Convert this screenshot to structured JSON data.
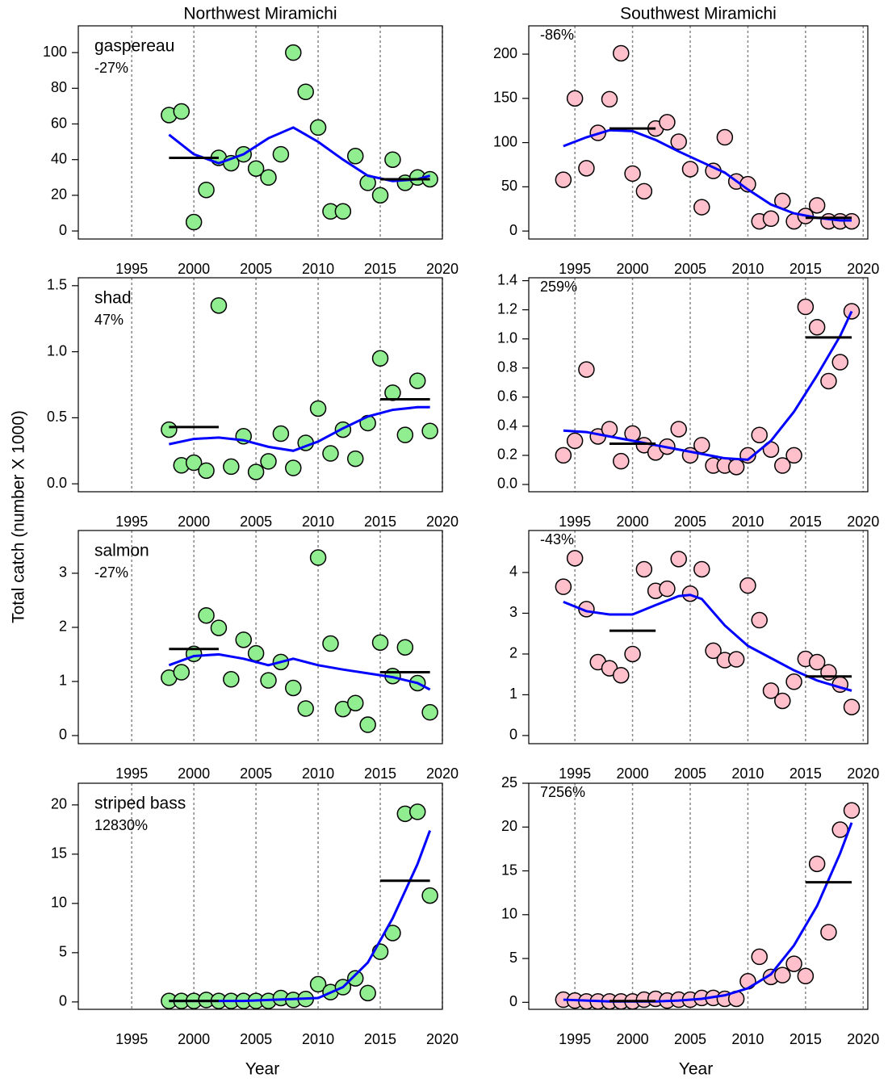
{
  "y_label": "Total catch (number X 1000)",
  "x_label": "Year",
  "chart_data": [
    {
      "type": "scatter",
      "title": "Northwest Miramichi",
      "label": "gaspereau",
      "annotation": "-27%",
      "color": "#90ee90",
      "line_color": "#0000ff",
      "grid": "x",
      "x": [
        1998,
        1999,
        2000,
        2001,
        2002,
        2003,
        2004,
        2005,
        2006,
        2007,
        2008,
        2009,
        2010,
        2011,
        2012,
        2013,
        2014,
        2015,
        2016,
        2017,
        2018,
        2019
      ],
      "values": [
        65,
        67,
        5,
        23,
        41,
        38,
        43,
        35,
        30,
        43,
        100,
        78,
        58,
        11,
        11,
        42,
        27,
        20,
        40,
        27,
        30,
        29
      ],
      "smooth": {
        "x": [
          1998,
          2000,
          2002,
          2004,
          2006,
          2008,
          2010,
          2012,
          2014,
          2016,
          2018,
          2019
        ],
        "values": [
          54,
          43,
          38,
          43,
          52,
          58,
          50,
          40,
          31,
          28,
          29,
          31
        ]
      },
      "means": [
        {
          "x": [
            1998,
            2002
          ],
          "value": 41
        },
        {
          "x": [
            2015,
            2019
          ],
          "value": 29
        }
      ],
      "xlim": [
        1990.7,
        2020
      ],
      "xticks": [
        1995,
        2000,
        2005,
        2010,
        2015,
        2020
      ],
      "ylim": [
        -4.5,
        115
      ],
      "yticks": [
        0,
        20,
        40,
        60,
        80,
        100
      ]
    },
    {
      "type": "scatter",
      "title": "Southwest Miramichi",
      "annotation": "-86%",
      "color": "#ffc0cb",
      "line_color": "#0000ff",
      "grid": "x",
      "x": [
        1994,
        1995,
        1996,
        1997,
        1998,
        1999,
        2000,
        2001,
        2002,
        2003,
        2004,
        2005,
        2006,
        2007,
        2008,
        2009,
        2010,
        2011,
        2012,
        2013,
        2014,
        2015,
        2016,
        2017,
        2018,
        2019
      ],
      "values": [
        58,
        150,
        71,
        111,
        149,
        201,
        65,
        45,
        116,
        123,
        101,
        70,
        27,
        68,
        106,
        56,
        53,
        11,
        14,
        34,
        11,
        17,
        29,
        11,
        11,
        11
      ],
      "smooth": {
        "x": [
          1994,
          1996,
          1998,
          2000,
          2002,
          2004,
          2006,
          2008,
          2010,
          2012,
          2014,
          2016,
          2018,
          2019
        ],
        "values": [
          96,
          106,
          114,
          113,
          103,
          90,
          78,
          66,
          47,
          30,
          20,
          15,
          12,
          12
        ]
      },
      "means": [
        {
          "x": [
            1998,
            2002
          ],
          "value": 116
        },
        {
          "x": [
            2015,
            2019
          ],
          "value": 15
        }
      ],
      "xlim": [
        1991,
        2020.4
      ],
      "xticks": [
        1995,
        2000,
        2005,
        2010,
        2015,
        2020
      ],
      "ylim": [
        -9,
        232
      ],
      "yticks": [
        0,
        50,
        100,
        150,
        200
      ]
    },
    {
      "type": "scatter",
      "label": "shad",
      "annotation": "47%",
      "color": "#90ee90",
      "line_color": "#0000ff",
      "grid": "x",
      "x": [
        1998,
        1999,
        2000,
        2001,
        2002,
        2003,
        2004,
        2005,
        2006,
        2007,
        2008,
        2009,
        2010,
        2011,
        2012,
        2013,
        2014,
        2015,
        2016,
        2017,
        2018,
        2019
      ],
      "values": [
        0.41,
        0.14,
        0.16,
        0.1,
        1.35,
        0.13,
        0.36,
        0.09,
        0.17,
        0.38,
        0.12,
        0.31,
        0.57,
        0.23,
        0.41,
        0.19,
        0.46,
        0.95,
        0.69,
        0.37,
        0.78,
        0.4
      ],
      "smooth": {
        "x": [
          1998,
          2000,
          2002,
          2004,
          2006,
          2008,
          2010,
          2012,
          2014,
          2016,
          2018,
          2019
        ],
        "values": [
          0.3,
          0.34,
          0.35,
          0.33,
          0.28,
          0.25,
          0.32,
          0.42,
          0.51,
          0.56,
          0.58,
          0.58
        ]
      },
      "means": [
        {
          "x": [
            1998,
            2002
          ],
          "value": 0.43
        },
        {
          "x": [
            2015,
            2019
          ],
          "value": 0.64
        }
      ],
      "xlim": [
        1990.7,
        2020
      ],
      "xticks": [
        1995,
        2000,
        2005,
        2010,
        2015,
        2020
      ],
      "ylim": [
        -0.06,
        1.56
      ],
      "yticks": [
        {
          "value": 0,
          "label": "0.0"
        },
        {
          "value": 0.5,
          "label": "0.5"
        },
        {
          "value": 1,
          "label": "1.0"
        },
        {
          "value": 1.5,
          "label": "1.5"
        }
      ]
    },
    {
      "type": "scatter",
      "annotation": "259%",
      "color": "#ffc0cb",
      "line_color": "#0000ff",
      "grid": "x",
      "x": [
        1994,
        1995,
        1996,
        1997,
        1998,
        1999,
        2000,
        2001,
        2002,
        2003,
        2004,
        2005,
        2006,
        2007,
        2008,
        2009,
        2010,
        2011,
        2012,
        2013,
        2014,
        2015,
        2016,
        2017,
        2018,
        2019
      ],
      "values": [
        0.2,
        0.3,
        0.79,
        0.33,
        0.38,
        0.16,
        0.35,
        0.27,
        0.22,
        0.26,
        0.38,
        0.2,
        0.27,
        0.13,
        0.13,
        0.12,
        0.2,
        0.34,
        0.24,
        0.13,
        0.2,
        1.22,
        1.08,
        0.71,
        0.84,
        1.19
      ],
      "smooth": {
        "x": [
          1994,
          1996,
          1998,
          2000,
          2002,
          2004,
          2006,
          2008,
          2010,
          2012,
          2014,
          2016,
          2018,
          2019
        ],
        "values": [
          0.37,
          0.36,
          0.33,
          0.3,
          0.27,
          0.24,
          0.21,
          0.18,
          0.17,
          0.3,
          0.5,
          0.75,
          1.02,
          1.19
        ]
      },
      "means": [
        {
          "x": [
            1998,
            2002
          ],
          "value": 0.28
        },
        {
          "x": [
            2015,
            2019
          ],
          "value": 1.01
        }
      ],
      "xlim": [
        1991,
        2020.4
      ],
      "xticks": [
        1995,
        2000,
        2005,
        2010,
        2015,
        2020
      ],
      "ylim": [
        -0.05,
        1.42
      ],
      "yticks": [
        {
          "value": 0,
          "label": "0.0"
        },
        {
          "value": 0.2,
          "label": "0.2"
        },
        {
          "value": 0.4,
          "label": "0.4"
        },
        {
          "value": 0.6,
          "label": "0.6"
        },
        {
          "value": 0.8,
          "label": "0.8"
        },
        {
          "value": 1,
          "label": "1.0"
        },
        {
          "value": 1.2,
          "label": "1.2"
        },
        {
          "value": 1.4,
          "label": "1.4"
        }
      ]
    },
    {
      "type": "scatter",
      "label": "salmon",
      "annotation": "-27%",
      "color": "#90ee90",
      "line_color": "#0000ff",
      "grid": "x",
      "x": [
        1998,
        1999,
        2000,
        2001,
        2002,
        2003,
        2004,
        2005,
        2006,
        2007,
        2008,
        2009,
        2010,
        2011,
        2012,
        2013,
        2014,
        2015,
        2016,
        2017,
        2018,
        2019
      ],
      "values": [
        1.07,
        1.17,
        1.51,
        2.22,
        1.99,
        1.04,
        1.77,
        1.52,
        1.02,
        1.36,
        0.88,
        0.5,
        3.29,
        1.7,
        0.49,
        0.6,
        0.2,
        1.72,
        1.1,
        1.63,
        0.97,
        0.43
      ],
      "smooth": {
        "x": [
          1998,
          2000,
          2002,
          2004,
          2006,
          2008,
          2010,
          2012,
          2014,
          2016,
          2018,
          2019
        ],
        "values": [
          1.3,
          1.47,
          1.5,
          1.42,
          1.3,
          1.42,
          1.3,
          1.22,
          1.15,
          1.08,
          0.97,
          0.85
        ]
      },
      "means": [
        {
          "x": [
            1998,
            2002
          ],
          "value": 1.6
        },
        {
          "x": [
            2015,
            2019
          ],
          "value": 1.17
        }
      ],
      "xlim": [
        1990.7,
        2020
      ],
      "xticks": [
        1995,
        2000,
        2005,
        2010,
        2015,
        2020
      ],
      "ylim": [
        -0.15,
        3.79
      ],
      "yticks": [
        0,
        1,
        2,
        3
      ]
    },
    {
      "type": "scatter",
      "annotation": "-43%",
      "color": "#ffc0cb",
      "line_color": "#0000ff",
      "grid": "x",
      "x": [
        1994,
        1995,
        1996,
        1997,
        1998,
        1999,
        2000,
        2001,
        2002,
        2003,
        2004,
        2005,
        2006,
        2007,
        2008,
        2009,
        2010,
        2011,
        2012,
        2013,
        2014,
        2015,
        2016,
        2017,
        2018,
        2019
      ],
      "values": [
        3.65,
        4.35,
        3.1,
        1.8,
        1.65,
        1.48,
        2.0,
        4.08,
        3.55,
        3.6,
        4.33,
        3.48,
        4.08,
        2.08,
        1.85,
        1.87,
        3.68,
        2.83,
        1.1,
        0.85,
        1.32,
        1.88,
        1.8,
        1.55,
        1.25,
        0.7
      ],
      "smooth": {
        "x": [
          1994,
          1996,
          1998,
          2000,
          2002,
          2004,
          2005,
          2006,
          2008,
          2010,
          2012,
          2014,
          2016,
          2018,
          2019
        ],
        "values": [
          3.28,
          3.05,
          2.97,
          2.97,
          3.2,
          3.42,
          3.45,
          3.35,
          2.7,
          2.2,
          1.9,
          1.6,
          1.35,
          1.18,
          1.1
        ]
      },
      "means": [
        {
          "x": [
            1998,
            2002
          ],
          "value": 2.57
        },
        {
          "x": [
            2015,
            2019
          ],
          "value": 1.45
        }
      ],
      "xlim": [
        1991,
        2020.4
      ],
      "xticks": [
        1995,
        2000,
        2005,
        2010,
        2015,
        2020
      ],
      "ylim": [
        -0.2,
        5.03
      ],
      "yticks": [
        0,
        1,
        2,
        3,
        4
      ]
    },
    {
      "type": "scatter",
      "label": "striped bass",
      "annotation": "12830%",
      "color": "#90ee90",
      "line_color": "#0000ff",
      "grid": "x",
      "x": [
        1998,
        1999,
        2000,
        2001,
        2002,
        2003,
        2004,
        2005,
        2006,
        2007,
        2008,
        2009,
        2010,
        2011,
        2012,
        2013,
        2014,
        2015,
        2016,
        2017,
        2018,
        2019
      ],
      "values": [
        0.1,
        0.1,
        0.1,
        0.2,
        0.1,
        0.1,
        0.1,
        0.1,
        0.1,
        0.4,
        0.2,
        0.3,
        1.8,
        1.0,
        1.5,
        2.4,
        0.9,
        5.1,
        7.0,
        19.1,
        19.3,
        10.8
      ],
      "smooth": {
        "x": [
          1998,
          2000,
          2002,
          2004,
          2006,
          2008,
          2010,
          2012,
          2014,
          2016,
          2018,
          2019
        ],
        "values": [
          0.1,
          0.1,
          0.1,
          0.1,
          0.2,
          0.3,
          0.4,
          1.5,
          4.0,
          8.5,
          14,
          17.4
        ]
      },
      "means": [
        {
          "x": [
            1998,
            2002
          ],
          "value": 0.1
        },
        {
          "x": [
            2015,
            2019
          ],
          "value": 12.3
        }
      ],
      "xlim": [
        1990.7,
        2020
      ],
      "xticks": [
        1995,
        2000,
        2005,
        2010,
        2015,
        2020
      ],
      "ylim": [
        -0.75,
        22.2
      ],
      "yticks": [
        0,
        5,
        10,
        15,
        20
      ]
    },
    {
      "type": "scatter",
      "annotation": "7256%",
      "color": "#ffc0cb",
      "line_color": "#0000ff",
      "grid": "x",
      "x": [
        1994,
        1995,
        1996,
        1997,
        1998,
        1999,
        2000,
        2001,
        2002,
        2003,
        2004,
        2005,
        2006,
        2007,
        2008,
        2009,
        2010,
        2011,
        2012,
        2013,
        2014,
        2015,
        2016,
        2017,
        2018,
        2019
      ],
      "values": [
        0.3,
        0.2,
        0.1,
        0.1,
        0.1,
        0.1,
        0.1,
        0.3,
        0.4,
        0.2,
        0.3,
        0.3,
        0.5,
        0.5,
        0.4,
        0.4,
        2.4,
        5.2,
        2.9,
        3.1,
        4.4,
        3.0,
        15.8,
        8.0,
        19.7,
        21.9
      ],
      "smooth": {
        "x": [
          1994,
          1996,
          1998,
          2000,
          2002,
          2004,
          2006,
          2008,
          2010,
          2012,
          2014,
          2016,
          2018,
          2019
        ],
        "values": [
          0.3,
          0.2,
          0.1,
          0.1,
          0.1,
          0.2,
          0.4,
          0.8,
          1.6,
          3.2,
          6.5,
          11,
          17,
          20.5
        ]
      },
      "means": [
        {
          "x": [
            1998,
            2002
          ],
          "value": 0.15
        },
        {
          "x": [
            2015,
            2019
          ],
          "value": 13.7
        }
      ],
      "xlim": [
        1991,
        2020.4
      ],
      "xticks": [
        1995,
        2000,
        2005,
        2010,
        2015,
        2020
      ],
      "ylim": [
        -0.8,
        25
      ],
      "yticks": [
        0,
        5,
        10,
        15,
        20,
        25
      ]
    }
  ]
}
